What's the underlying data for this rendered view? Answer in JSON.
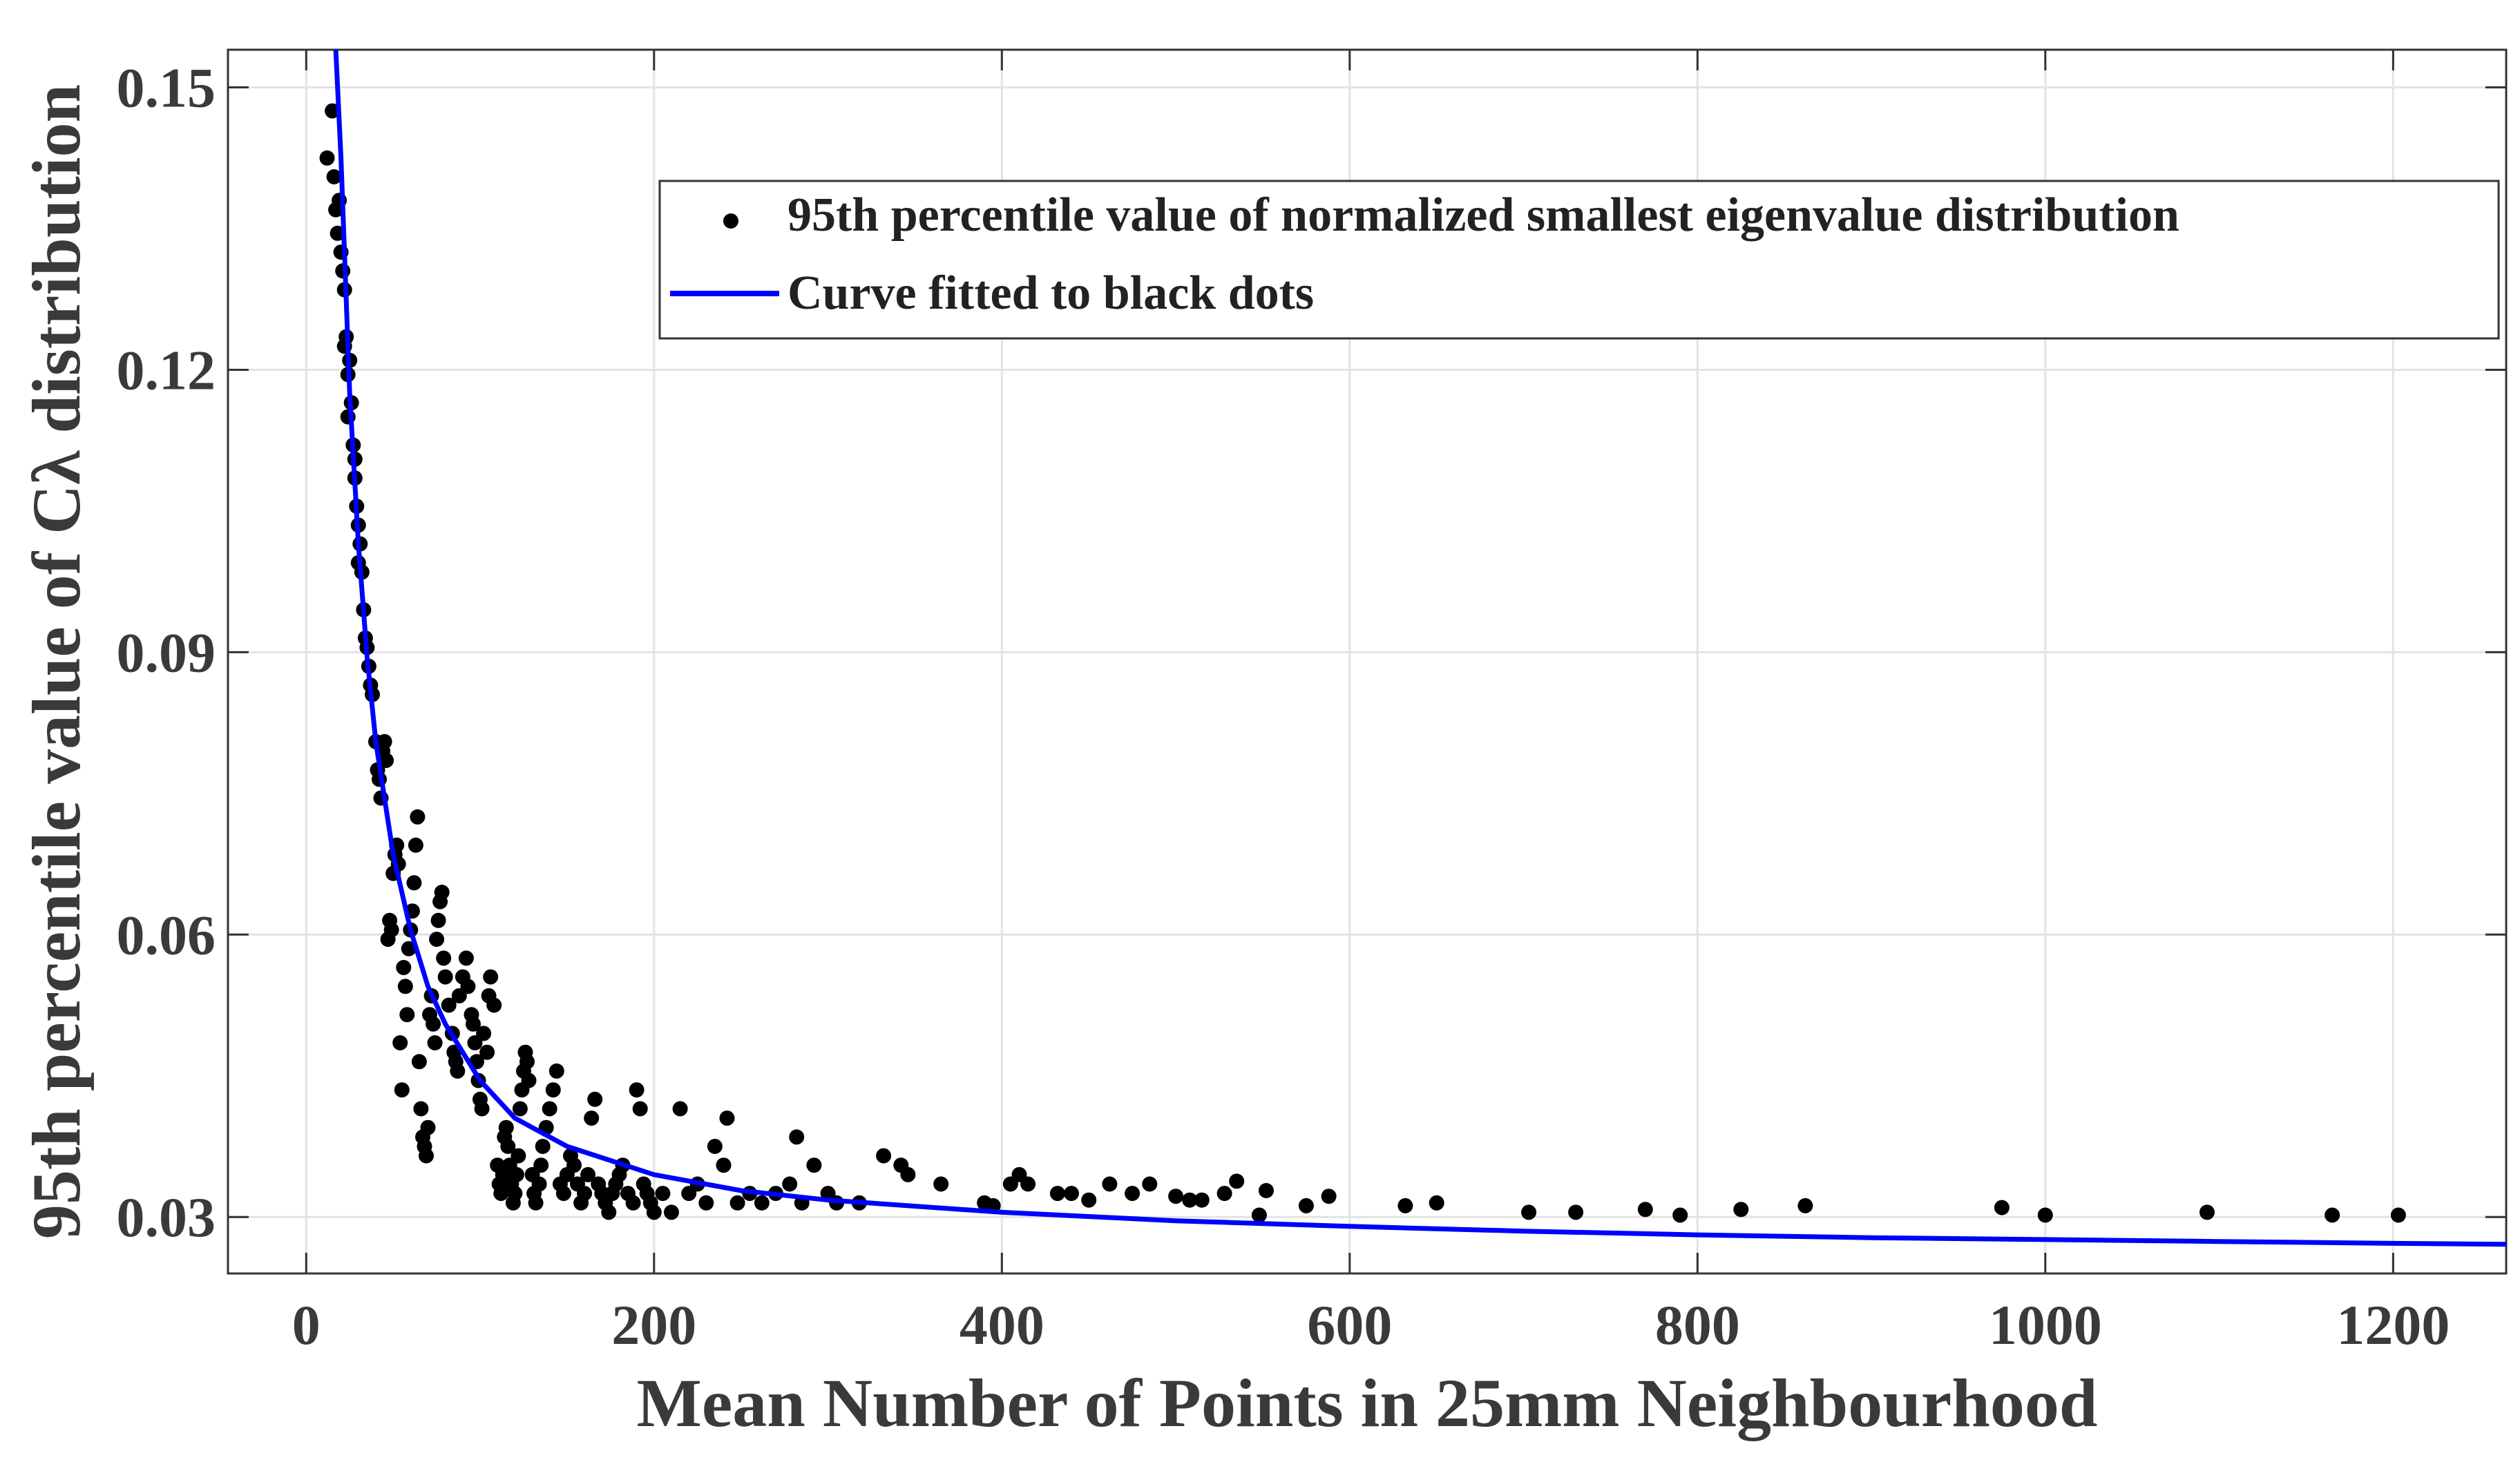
{
  "chart_data": {
    "type": "scatter",
    "title": "",
    "xlabel": "Mean Number of Points in 25mm Neighbourhood",
    "ylabel": "95th percentile value of Cλ distribution",
    "xlim": [
      -45,
      1265
    ],
    "ylim": [
      0.024,
      0.154
    ],
    "xticks": [
      0,
      200,
      400,
      600,
      800,
      1000,
      1200
    ],
    "xtick_labels": [
      "0",
      "200",
      "400",
      "600",
      "800",
      "1000",
      "1200"
    ],
    "yticks": [
      0.03,
      0.06,
      0.09,
      0.12,
      0.15
    ],
    "ytick_labels": [
      "0.03",
      "0.06",
      "0.09",
      "0.12",
      "0.15"
    ],
    "grid": true,
    "legend_position": "top-right",
    "colors": {
      "dots": "#000000",
      "curve": "#0000ff",
      "grid": "#e3e3e3",
      "axis": "#333333"
    },
    "series": [
      {
        "name": "95th percentile value of normalized smallest eigenvalue distribution",
        "kind": "scatter",
        "points": [
          [
            12,
            0.1425
          ],
          [
            15,
            0.1475
          ],
          [
            16,
            0.1405
          ],
          [
            17,
            0.137
          ],
          [
            18,
            0.1345
          ],
          [
            19,
            0.138
          ],
          [
            20,
            0.1325
          ],
          [
            21,
            0.1305
          ],
          [
            22,
            0.1225
          ],
          [
            22,
            0.1285
          ],
          [
            23,
            0.1235
          ],
          [
            24,
            0.1195
          ],
          [
            24,
            0.115
          ],
          [
            25,
            0.121
          ],
          [
            26,
            0.1165
          ],
          [
            27,
            0.112
          ],
          [
            28,
            0.1085
          ],
          [
            28,
            0.1105
          ],
          [
            29,
            0.1055
          ],
          [
            30,
            0.1035
          ],
          [
            30,
            0.0995
          ],
          [
            31,
            0.1015
          ],
          [
            32,
            0.0985
          ],
          [
            33,
            0.0945
          ],
          [
            34,
            0.0915
          ],
          [
            35,
            0.0905
          ],
          [
            36,
            0.0885
          ],
          [
            37,
            0.0865
          ],
          [
            38,
            0.0855
          ],
          [
            40,
            0.0805
          ],
          [
            41,
            0.0775
          ],
          [
            42,
            0.0765
          ],
          [
            43,
            0.0745
          ],
          [
            44,
            0.0795
          ],
          [
            45,
            0.0805
          ],
          [
            46,
            0.0785
          ],
          [
            47,
            0.0595
          ],
          [
            48,
            0.0615
          ],
          [
            49,
            0.0605
          ],
          [
            50,
            0.0665
          ],
          [
            51,
            0.0685
          ],
          [
            52,
            0.0695
          ],
          [
            53,
            0.0675
          ],
          [
            54,
            0.0485
          ],
          [
            55,
            0.0435
          ],
          [
            56,
            0.0565
          ],
          [
            57,
            0.0545
          ],
          [
            58,
            0.0515
          ],
          [
            59,
            0.0585
          ],
          [
            60,
            0.0605
          ],
          [
            61,
            0.0625
          ],
          [
            62,
            0.0655
          ],
          [
            63,
            0.0695
          ],
          [
            64,
            0.0725
          ],
          [
            65,
            0.0465
          ],
          [
            66,
            0.0415
          ],
          [
            67,
            0.0385
          ],
          [
            68,
            0.0375
          ],
          [
            69,
            0.0365
          ],
          [
            70,
            0.0395
          ],
          [
            71,
            0.0515
          ],
          [
            72,
            0.0535
          ],
          [
            73,
            0.0505
          ],
          [
            74,
            0.0485
          ],
          [
            75,
            0.0595
          ],
          [
            76,
            0.0615
          ],
          [
            77,
            0.0635
          ],
          [
            78,
            0.0645
          ],
          [
            79,
            0.0575
          ],
          [
            80,
            0.0555
          ],
          [
            82,
            0.0525
          ],
          [
            84,
            0.0495
          ],
          [
            85,
            0.0475
          ],
          [
            86,
            0.0465
          ],
          [
            87,
            0.0455
          ],
          [
            88,
            0.0535
          ],
          [
            90,
            0.0555
          ],
          [
            92,
            0.0575
          ],
          [
            93,
            0.0545
          ],
          [
            95,
            0.0515
          ],
          [
            96,
            0.0505
          ],
          [
            97,
            0.0485
          ],
          [
            98,
            0.0465
          ],
          [
            99,
            0.0445
          ],
          [
            100,
            0.0425
          ],
          [
            101,
            0.0415
          ],
          [
            102,
            0.0495
          ],
          [
            104,
            0.0475
          ],
          [
            105,
            0.0535
          ],
          [
            106,
            0.0555
          ],
          [
            108,
            0.0525
          ],
          [
            110,
            0.0355
          ],
          [
            111,
            0.0335
          ],
          [
            112,
            0.0325
          ],
          [
            113,
            0.0345
          ],
          [
            114,
            0.0385
          ],
          [
            115,
            0.0395
          ],
          [
            116,
            0.0375
          ],
          [
            117,
            0.0355
          ],
          [
            118,
            0.0335
          ],
          [
            119,
            0.0315
          ],
          [
            120,
            0.0325
          ],
          [
            121,
            0.0345
          ],
          [
            122,
            0.0365
          ],
          [
            123,
            0.0415
          ],
          [
            124,
            0.0435
          ],
          [
            125,
            0.0455
          ],
          [
            126,
            0.0475
          ],
          [
            127,
            0.0465
          ],
          [
            128,
            0.0445
          ],
          [
            130,
            0.0345
          ],
          [
            131,
            0.0325
          ],
          [
            132,
            0.0315
          ],
          [
            134,
            0.0335
          ],
          [
            135,
            0.0355
          ],
          [
            136,
            0.0375
          ],
          [
            138,
            0.0395
          ],
          [
            140,
            0.0415
          ],
          [
            142,
            0.0435
          ],
          [
            144,
            0.0455
          ],
          [
            146,
            0.0335
          ],
          [
            148,
            0.0325
          ],
          [
            150,
            0.0345
          ],
          [
            152,
            0.0365
          ],
          [
            154,
            0.0355
          ],
          [
            156,
            0.0335
          ],
          [
            158,
            0.0315
          ],
          [
            160,
            0.0325
          ],
          [
            162,
            0.0345
          ],
          [
            164,
            0.0405
          ],
          [
            166,
            0.0425
          ],
          [
            168,
            0.0335
          ],
          [
            170,
            0.0325
          ],
          [
            172,
            0.0315
          ],
          [
            174,
            0.0305
          ],
          [
            176,
            0.0325
          ],
          [
            178,
            0.0335
          ],
          [
            180,
            0.0345
          ],
          [
            182,
            0.0355
          ],
          [
            185,
            0.0325
          ],
          [
            188,
            0.0315
          ],
          [
            190,
            0.0435
          ],
          [
            192,
            0.0415
          ],
          [
            194,
            0.0335
          ],
          [
            196,
            0.0325
          ],
          [
            198,
            0.0315
          ],
          [
            200,
            0.0305
          ],
          [
            205,
            0.0325
          ],
          [
            210,
            0.0305
          ],
          [
            215,
            0.0415
          ],
          [
            220,
            0.0325
          ],
          [
            225,
            0.0335
          ],
          [
            230,
            0.0315
          ],
          [
            235,
            0.0375
          ],
          [
            240,
            0.0355
          ],
          [
            242,
            0.0405
          ],
          [
            248,
            0.0315
          ],
          [
            255,
            0.0325
          ],
          [
            262,
            0.0315
          ],
          [
            270,
            0.0325
          ],
          [
            278,
            0.0335
          ],
          [
            282,
            0.0385
          ],
          [
            285,
            0.0315
          ],
          [
            292,
            0.0355
          ],
          [
            300,
            0.0325
          ],
          [
            305,
            0.0315
          ],
          [
            318,
            0.0315
          ],
          [
            332,
            0.0365
          ],
          [
            342,
            0.0355
          ],
          [
            346,
            0.0345
          ],
          [
            365,
            0.0335
          ],
          [
            390,
            0.0315
          ],
          [
            395,
            0.0312
          ],
          [
            405,
            0.0335
          ],
          [
            410,
            0.0345
          ],
          [
            415,
            0.0335
          ],
          [
            432,
            0.0325
          ],
          [
            440,
            0.0325
          ],
          [
            450,
            0.0318
          ],
          [
            462,
            0.0335
          ],
          [
            475,
            0.0325
          ],
          [
            485,
            0.0335
          ],
          [
            500,
            0.0322
          ],
          [
            508,
            0.0318
          ],
          [
            515,
            0.0318
          ],
          [
            528,
            0.0325
          ],
          [
            535,
            0.0338
          ],
          [
            548,
            0.0302
          ],
          [
            552,
            0.0328
          ],
          [
            575,
            0.0312
          ],
          [
            588,
            0.0322
          ],
          [
            632,
            0.0312
          ],
          [
            650,
            0.0315
          ],
          [
            703,
            0.0305
          ],
          [
            730,
            0.0305
          ],
          [
            770,
            0.0308
          ],
          [
            790,
            0.0302
          ],
          [
            825,
            0.0308
          ],
          [
            862,
            0.0312
          ],
          [
            975,
            0.031
          ],
          [
            1000,
            0.0302
          ],
          [
            1093,
            0.0305
          ],
          [
            1165,
            0.0302
          ],
          [
            1203,
            0.0302
          ]
        ]
      },
      {
        "name": "Curve fitted to black dots",
        "kind": "line",
        "x": [
          17,
          20,
          25,
          30,
          35,
          40,
          50,
          60,
          70,
          80,
          100,
          120,
          150,
          200,
          250,
          300,
          400,
          500,
          600,
          700,
          800,
          900,
          1000,
          1100,
          1200,
          1265
        ],
        "values": [
          0.156,
          0.1425,
          0.1175,
          0.1015,
          0.0895,
          0.0805,
          0.0685,
          0.0605,
          0.0545,
          0.0505,
          0.0445,
          0.0405,
          0.0375,
          0.0345,
          0.0328,
          0.0318,
          0.0305,
          0.0296,
          0.029,
          0.0285,
          0.0281,
          0.0278,
          0.0276,
          0.0274,
          0.0272,
          0.0271
        ]
      }
    ]
  }
}
